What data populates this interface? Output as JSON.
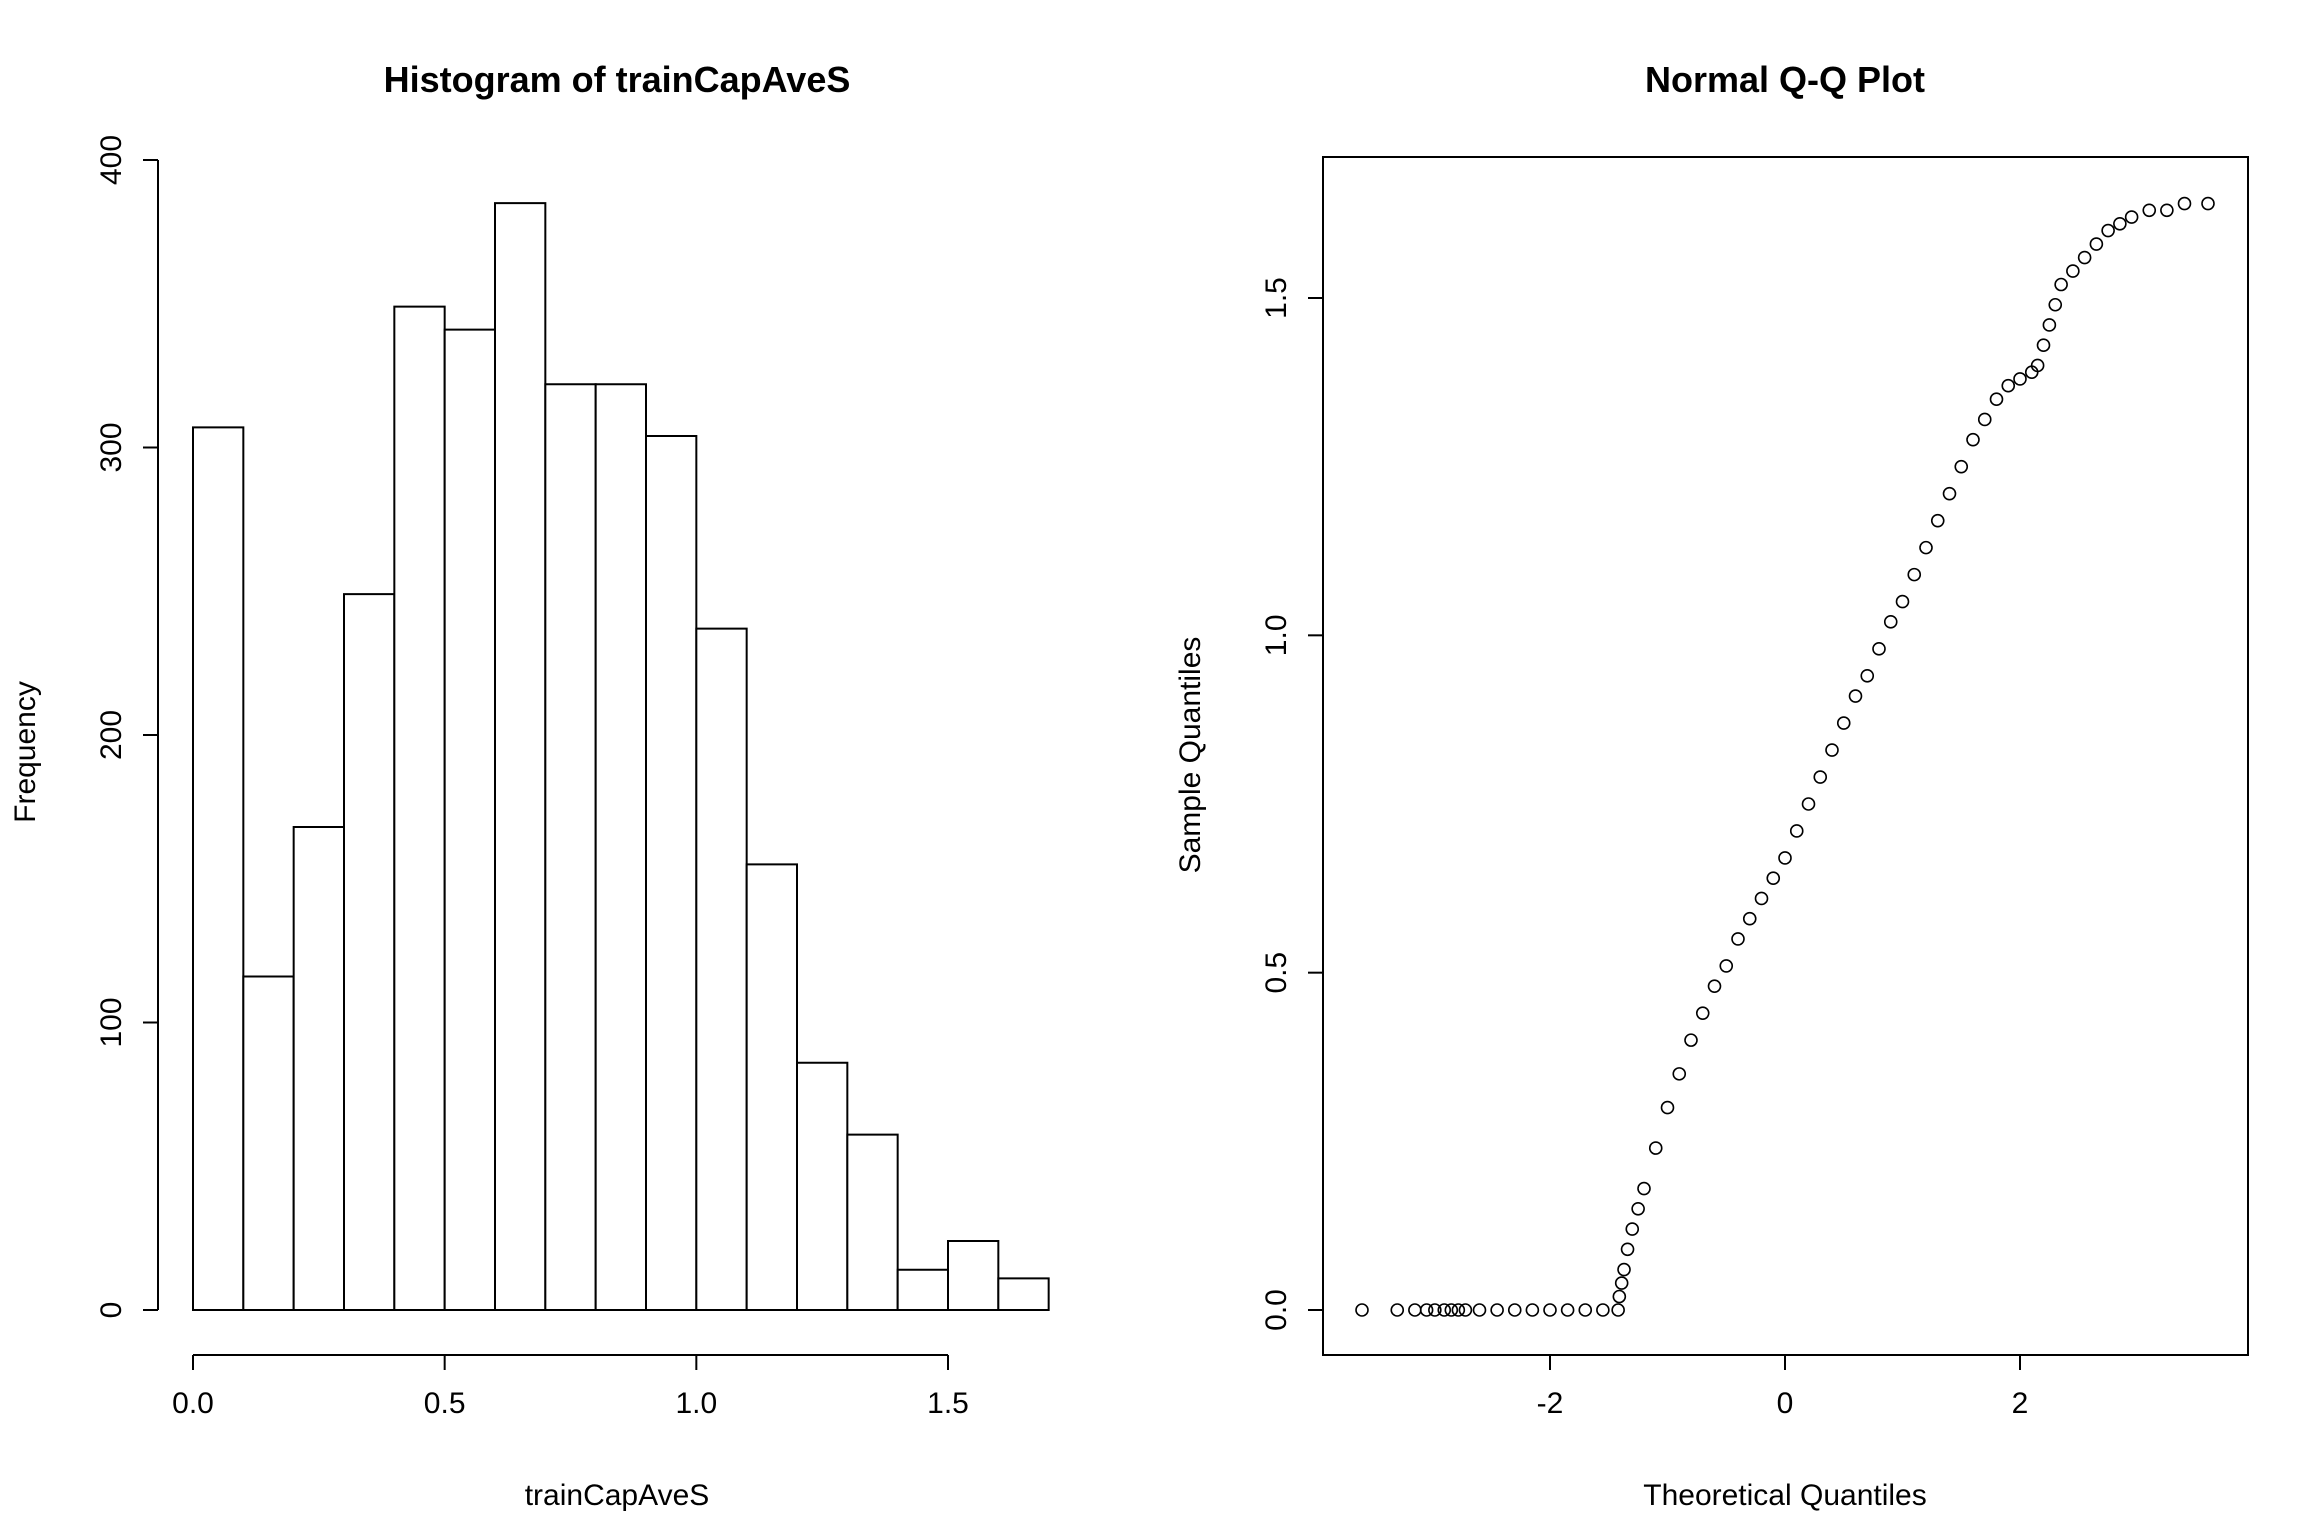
{
  "chart_data": [
    {
      "type": "bar",
      "title": "Histogram of trainCapAveS",
      "xlabel": "trainCapAveS",
      "ylabel": "Frequency",
      "bin_width": 0.1,
      "bin_edges": [
        0.0,
        0.1,
        0.2,
        0.3,
        0.4,
        0.5,
        0.6,
        0.7,
        0.8,
        0.9,
        1.0,
        1.1,
        1.2,
        1.3,
        1.4,
        1.5,
        1.6,
        1.7
      ],
      "values": [
        307,
        116,
        168,
        249,
        349,
        341,
        385,
        322,
        322,
        304,
        237,
        155,
        86,
        61,
        14,
        24,
        11
      ],
      "xlim": [
        0.0,
        1.7
      ],
      "ylim": [
        0,
        400
      ],
      "x_ticks": [
        0.0,
        0.5,
        1.0,
        1.5
      ],
      "x_tick_labels": [
        "0.0",
        "0.5",
        "1.0",
        "1.5"
      ],
      "y_ticks": [
        0,
        100,
        200,
        300,
        400
      ],
      "y_tick_labels": [
        "0",
        "100",
        "200",
        "300",
        "400"
      ],
      "grid": false
    },
    {
      "type": "scatter",
      "title": "Normal Q-Q Plot",
      "xlabel": "Theoretical Quantiles",
      "ylabel": "Sample Quantiles",
      "xlim": [
        -3.7,
        4.15
      ],
      "ylim": [
        -0.065,
        1.71
      ],
      "x_ticks": [
        -2,
        0,
        2
      ],
      "x_tick_labels": [
        "-2",
        "0",
        "2"
      ],
      "y_ticks": [
        0.0,
        0.5,
        1.0,
        1.5
      ],
      "y_tick_labels": [
        "0.0",
        "0.5",
        "1.0",
        "1.5"
      ],
      "marker": "open-circle",
      "grid": false,
      "points": [
        [
          -3.6,
          0.0
        ],
        [
          -3.3,
          0.0
        ],
        [
          -3.15,
          0.0
        ],
        [
          -3.05,
          0.0
        ],
        [
          -2.98,
          0.0
        ],
        [
          -2.9,
          0.0
        ],
        [
          -2.84,
          0.0
        ],
        [
          -2.78,
          0.0
        ],
        [
          -2.72,
          0.0
        ],
        [
          -2.6,
          0.0
        ],
        [
          -2.45,
          0.0
        ],
        [
          -2.3,
          0.0
        ],
        [
          -2.15,
          0.0
        ],
        [
          -2.0,
          0.0
        ],
        [
          -1.85,
          0.0
        ],
        [
          -1.7,
          0.0
        ],
        [
          -1.55,
          0.0
        ],
        [
          -1.42,
          0.0
        ],
        [
          -1.41,
          0.02
        ],
        [
          -1.39,
          0.04
        ],
        [
          -1.37,
          0.06
        ],
        [
          -1.34,
          0.09
        ],
        [
          -1.3,
          0.12
        ],
        [
          -1.25,
          0.15
        ],
        [
          -1.2,
          0.18
        ],
        [
          -1.1,
          0.24
        ],
        [
          -1.0,
          0.3
        ],
        [
          -0.9,
          0.35
        ],
        [
          -0.8,
          0.4
        ],
        [
          -0.7,
          0.44
        ],
        [
          -0.6,
          0.48
        ],
        [
          -0.5,
          0.51
        ],
        [
          -0.4,
          0.55
        ],
        [
          -0.3,
          0.58
        ],
        [
          -0.2,
          0.61
        ],
        [
          -0.1,
          0.64
        ],
        [
          0.0,
          0.67
        ],
        [
          0.1,
          0.71
        ],
        [
          0.2,
          0.75
        ],
        [
          0.3,
          0.79
        ],
        [
          0.4,
          0.83
        ],
        [
          0.5,
          0.87
        ],
        [
          0.6,
          0.91
        ],
        [
          0.7,
          0.94
        ],
        [
          0.8,
          0.98
        ],
        [
          0.9,
          1.02
        ],
        [
          1.0,
          1.05
        ],
        [
          1.1,
          1.09
        ],
        [
          1.2,
          1.13
        ],
        [
          1.3,
          1.17
        ],
        [
          1.4,
          1.21
        ],
        [
          1.5,
          1.25
        ],
        [
          1.6,
          1.29
        ],
        [
          1.7,
          1.32
        ],
        [
          1.8,
          1.35
        ],
        [
          1.9,
          1.37
        ],
        [
          2.0,
          1.38
        ],
        [
          2.1,
          1.39
        ],
        [
          2.15,
          1.4
        ],
        [
          2.2,
          1.43
        ],
        [
          2.25,
          1.46
        ],
        [
          2.3,
          1.49
        ],
        [
          2.35,
          1.52
        ],
        [
          2.45,
          1.54
        ],
        [
          2.55,
          1.56
        ],
        [
          2.65,
          1.58
        ],
        [
          2.75,
          1.6
        ],
        [
          2.85,
          1.61
        ],
        [
          2.95,
          1.62
        ],
        [
          3.1,
          1.63
        ],
        [
          3.25,
          1.63
        ],
        [
          3.4,
          1.64
        ],
        [
          3.6,
          1.64
        ]
      ]
    }
  ]
}
